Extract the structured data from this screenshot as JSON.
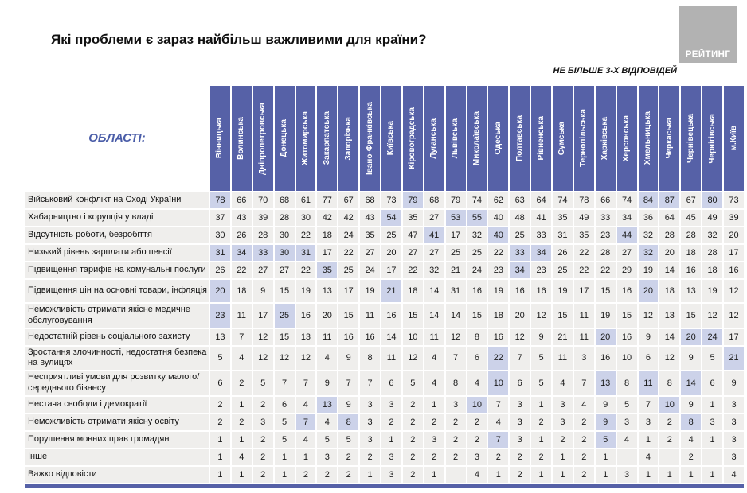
{
  "chart_data": {
    "type": "heatmap",
    "title": "Які проблеми є зараз найбільш важливими для країни?",
    "answers_note": "НЕ БІЛЬШЕ 3-Х ВІДПОВІДЕЙ",
    "corner_label": "ОБЛАСТІ:",
    "logo_text": "РЕЙТИНГ",
    "colors": {
      "header_bg": "#5661a7",
      "cell_bg": "#efeeec",
      "highlight_bg": "#ccd2e9",
      "corner_label_color": "#4a5da8",
      "logo_bg": "#b2b2b2"
    },
    "columns": [
      "Вінницька",
      "Волинська",
      "Дніпропетровська",
      "Донецька",
      "Житомирська",
      "Закарпатська",
      "Запорізька",
      "Івано-Франківська",
      "Київська",
      "Кіровоградська",
      "Луганська",
      "Львівська",
      "Миколаївська",
      "Одеська",
      "Полтавська",
      "Рівненська",
      "Сумська",
      "Тернопільська",
      "Харківська",
      "Херсонська",
      "Хмельницька",
      "Черкаська",
      "Чернівецька",
      "Чернігівська",
      "м.Київ"
    ],
    "rows": [
      {
        "label": "Військовий конфлікт на Сході України",
        "two_line": false,
        "values": [
          78,
          66,
          70,
          68,
          61,
          77,
          67,
          68,
          73,
          79,
          68,
          79,
          74,
          62,
          63,
          64,
          74,
          78,
          66,
          74,
          84,
          87,
          67,
          80,
          73
        ],
        "highlighted_cols": [
          0,
          9,
          20,
          21,
          23
        ]
      },
      {
        "label": "Хабарництво і корупція у владі",
        "two_line": false,
        "values": [
          37,
          43,
          39,
          28,
          30,
          42,
          42,
          43,
          54,
          35,
          27,
          53,
          55,
          40,
          48,
          41,
          35,
          49,
          33,
          34,
          36,
          64,
          45,
          49,
          39
        ],
        "highlighted_cols": [
          8,
          11,
          12
        ]
      },
      {
        "label": "Відсутність роботи, безробіття",
        "two_line": false,
        "values": [
          30,
          26,
          28,
          30,
          22,
          18,
          24,
          35,
          25,
          47,
          41,
          17,
          32,
          40,
          25,
          33,
          31,
          35,
          23,
          44,
          32,
          28,
          28,
          32,
          20
        ],
        "highlighted_cols": [
          10,
          13,
          19
        ]
      },
      {
        "label": "Низький рівень зарплати або пенсії",
        "two_line": false,
        "values": [
          31,
          34,
          33,
          30,
          31,
          17,
          22,
          27,
          20,
          27,
          27,
          25,
          25,
          22,
          33,
          34,
          26,
          22,
          28,
          27,
          32,
          20,
          18,
          28,
          17
        ],
        "highlighted_cols": [
          0,
          1,
          2,
          3,
          4,
          14,
          15,
          20
        ]
      },
      {
        "label": "Підвищення тарифів на комунальні послуги",
        "two_line": false,
        "values": [
          26,
          22,
          27,
          27,
          22,
          35,
          25,
          24,
          17,
          22,
          32,
          21,
          24,
          23,
          34,
          23,
          25,
          22,
          22,
          29,
          19,
          14,
          16,
          18,
          16
        ],
        "highlighted_cols": [
          5,
          14
        ]
      },
      {
        "label": "Підвищення цін на основні товари, інфляція",
        "two_line": true,
        "values": [
          20,
          18,
          9,
          15,
          19,
          13,
          17,
          19,
          21,
          18,
          14,
          31,
          16,
          19,
          16,
          16,
          19,
          17,
          15,
          16,
          20,
          18,
          13,
          19,
          12
        ],
        "highlighted_cols": [
          0,
          8,
          20
        ]
      },
      {
        "label": "Неможливість отримати якісне медичне обслуговування",
        "two_line": true,
        "values": [
          23,
          11,
          17,
          25,
          16,
          20,
          15,
          11,
          16,
          15,
          14,
          14,
          15,
          18,
          20,
          12,
          15,
          11,
          19,
          15,
          12,
          13,
          15,
          12,
          12
        ],
        "highlighted_cols": [
          0,
          3
        ]
      },
      {
        "label": "Недостатній рівень соціального захисту",
        "two_line": false,
        "values": [
          13,
          7,
          12,
          15,
          13,
          11,
          16,
          16,
          14,
          10,
          11,
          12,
          8,
          16,
          12,
          9,
          21,
          11,
          20,
          16,
          9,
          14,
          20,
          24,
          17
        ],
        "highlighted_cols": [
          18,
          22,
          23
        ]
      },
      {
        "label": "Зростання злочинності, недостатня безпека на вулицях",
        "two_line": true,
        "values": [
          5,
          4,
          12,
          12,
          12,
          4,
          9,
          8,
          11,
          12,
          4,
          7,
          6,
          22,
          7,
          5,
          11,
          3,
          16,
          10,
          6,
          12,
          9,
          5,
          21
        ],
        "highlighted_cols": [
          13,
          24
        ]
      },
      {
        "label": "Несприятливі умови для розвитку малого/середнього бізнесу",
        "two_line": true,
        "values": [
          6,
          2,
          5,
          7,
          7,
          9,
          7,
          7,
          6,
          5,
          4,
          8,
          4,
          10,
          6,
          5,
          4,
          7,
          13,
          8,
          11,
          8,
          14,
          6,
          9
        ],
        "highlighted_cols": [
          13,
          18,
          20,
          22
        ]
      },
      {
        "label": "Нестача свободи і демократії",
        "two_line": false,
        "values": [
          2,
          1,
          2,
          6,
          4,
          13,
          9,
          3,
          3,
          2,
          1,
          3,
          10,
          7,
          3,
          1,
          3,
          4,
          9,
          5,
          7,
          10,
          9,
          1,
          3
        ],
        "highlighted_cols": [
          5,
          12,
          21
        ]
      },
      {
        "label": "Неможливість отримати якісну освіту",
        "two_line": false,
        "values": [
          2,
          2,
          3,
          5,
          7,
          4,
          8,
          3,
          2,
          2,
          2,
          2,
          2,
          4,
          3,
          2,
          3,
          2,
          9,
          3,
          3,
          2,
          8,
          3,
          3
        ],
        "highlighted_cols": [
          4,
          6,
          18,
          22
        ]
      },
      {
        "label": "Порушення мовних прав громадян",
        "two_line": false,
        "values": [
          1,
          1,
          2,
          5,
          4,
          5,
          5,
          3,
          1,
          2,
          3,
          2,
          2,
          7,
          3,
          1,
          2,
          2,
          5,
          4,
          1,
          2,
          4,
          1,
          3
        ],
        "highlighted_cols": [
          13,
          18
        ]
      },
      {
        "label": "Інше",
        "two_line": false,
        "values": [
          1,
          4,
          2,
          1,
          1,
          3,
          2,
          2,
          3,
          2,
          2,
          2,
          3,
          2,
          2,
          2,
          1,
          2,
          1,
          "",
          4,
          "",
          2,
          "",
          3
        ],
        "highlighted_cols": []
      },
      {
        "label": "Важко відповісти",
        "two_line": false,
        "values": [
          1,
          1,
          2,
          1,
          2,
          2,
          2,
          1,
          3,
          2,
          1,
          "",
          4,
          1,
          2,
          1,
          1,
          2,
          1,
          3,
          1,
          1,
          1,
          1,
          4
        ],
        "highlighted_cols": []
      }
    ]
  }
}
